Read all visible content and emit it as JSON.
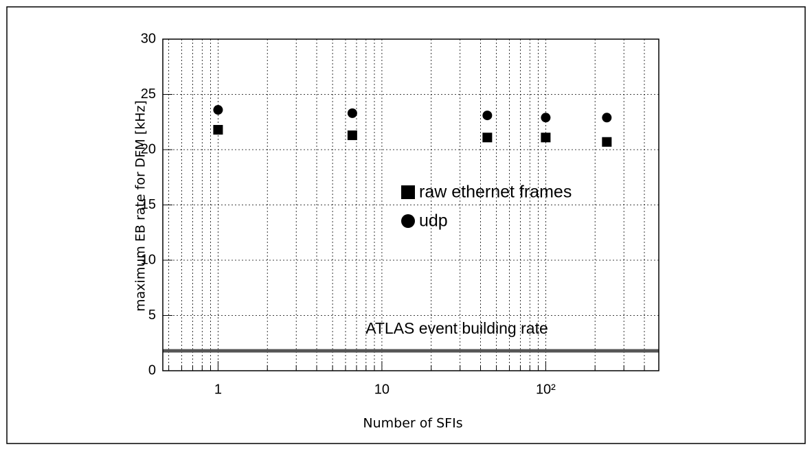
{
  "chart_data": {
    "type": "scatter",
    "x_label": "Number of SFIs",
    "y_label": "maximum EB rate for DFM [kHz]",
    "log_x": true,
    "grid": true,
    "xlim": [
      0.46,
      490
    ],
    "ylim": [
      0,
      30
    ],
    "xticks": [
      1,
      10,
      {
        "value": 100,
        "label": "10²"
      }
    ],
    "xminorticks": [
      0.5,
      0.6,
      0.7,
      0.8,
      0.9,
      2,
      3,
      4,
      5,
      6,
      7,
      8,
      9,
      20,
      30,
      40,
      50,
      60,
      70,
      80,
      90,
      200,
      300,
      400
    ],
    "yticks": [
      0,
      5,
      10,
      15,
      20,
      25,
      30
    ],
    "legend_position": "center",
    "series": [
      {
        "name": "raw ethernet frames",
        "marker": "square",
        "color": "#000000",
        "x": [
          1,
          6.6,
          44,
          100,
          236
        ],
        "values": [
          21.8,
          21.3,
          21.1,
          21.1,
          20.7
        ]
      },
      {
        "name": "udp",
        "marker": "circle",
        "color": "#000000",
        "x": [
          1,
          6.6,
          44,
          100,
          236
        ],
        "values": [
          23.6,
          23.3,
          23.1,
          22.9,
          22.9
        ]
      }
    ],
    "reference_line": {
      "value": 1.8,
      "label": "ATLAS event building rate",
      "color": "#555555"
    }
  }
}
